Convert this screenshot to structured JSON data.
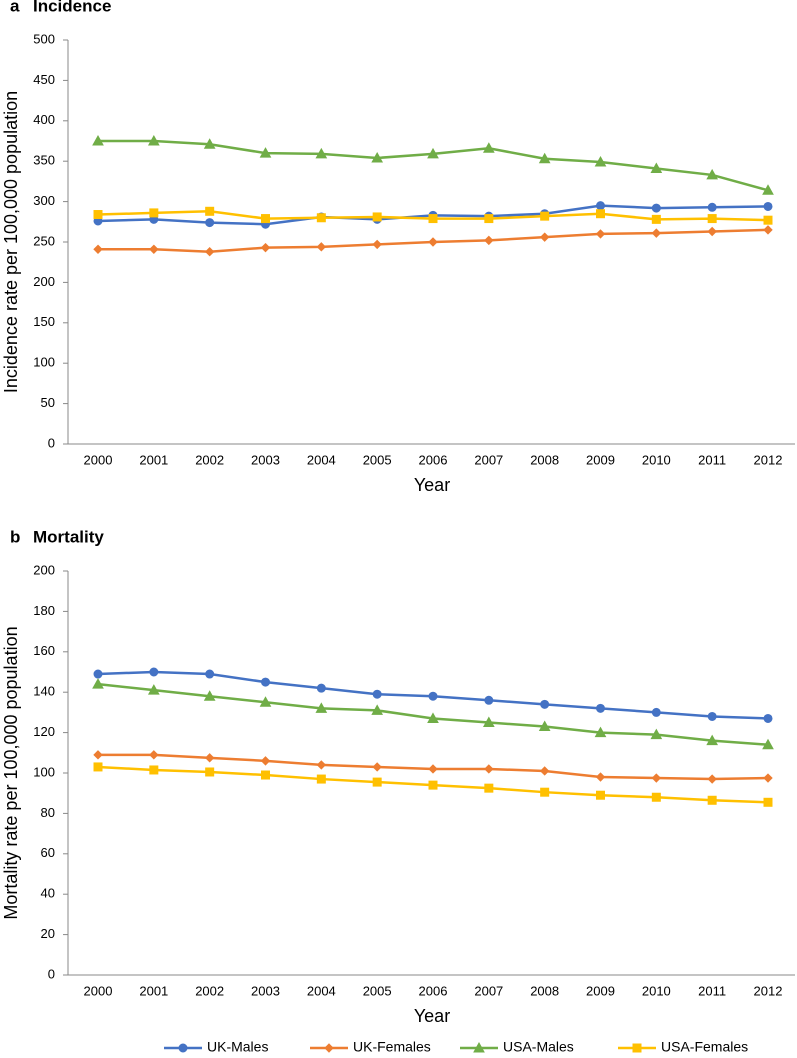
{
  "chart_data": [
    {
      "type": "line",
      "panel": "a",
      "title": "Incidence",
      "x_label": "Year",
      "y_label": "Incidence rate per 100,000 population",
      "categories": [
        "2000",
        "2001",
        "2002",
        "2003",
        "2004",
        "2005",
        "2006",
        "2007",
        "2008",
        "2009",
        "2010",
        "2011",
        "2012"
      ],
      "ylim": [
        0,
        500
      ],
      "yticks": [
        0,
        50,
        100,
        150,
        200,
        250,
        300,
        350,
        400,
        450,
        500
      ],
      "grid": false,
      "series": [
        {
          "name": "UK-Males",
          "color": "#4472c4",
          "marker": "circle",
          "values": [
            276,
            278,
            274,
            272,
            281,
            278,
            283,
            282,
            285,
            295,
            292,
            293,
            294
          ]
        },
        {
          "name": "UK-Females",
          "color": "#ed7d31",
          "marker": "diamond",
          "values": [
            241,
            241,
            238,
            243,
            244,
            247,
            250,
            252,
            256,
            260,
            261,
            263,
            265
          ]
        },
        {
          "name": "USA-Males",
          "color": "#70ad47",
          "marker": "triangle",
          "values": [
            375,
            375,
            371,
            360,
            359,
            354,
            359,
            366,
            353,
            349,
            341,
            333,
            314
          ]
        },
        {
          "name": "USA-Females",
          "color": "#ffc000",
          "marker": "square",
          "values": [
            284,
            286,
            288,
            279,
            280,
            281,
            279,
            279,
            282,
            285,
            278,
            279,
            277
          ]
        }
      ]
    },
    {
      "type": "line",
      "panel": "b",
      "title": "Mortality",
      "x_label": "Year",
      "y_label": "Mortality rate per 100,000 population",
      "categories": [
        "2000",
        "2001",
        "2002",
        "2003",
        "2004",
        "2005",
        "2006",
        "2007",
        "2008",
        "2009",
        "2010",
        "2011",
        "2012"
      ],
      "ylim": [
        0,
        200
      ],
      "yticks": [
        0,
        20,
        40,
        60,
        80,
        100,
        120,
        140,
        160,
        180,
        200
      ],
      "grid": false,
      "series": [
        {
          "name": "UK-Males",
          "color": "#4472c4",
          "marker": "circle",
          "values": [
            149,
            150,
            149,
            145,
            142,
            139,
            138,
            136,
            134,
            132,
            130,
            128,
            127
          ]
        },
        {
          "name": "UK-Females",
          "color": "#ed7d31",
          "marker": "diamond",
          "values": [
            109,
            109,
            107.5,
            106,
            104,
            103,
            102,
            102,
            101,
            98,
            97.5,
            97,
            97.5
          ]
        },
        {
          "name": "USA-Males",
          "color": "#70ad47",
          "marker": "triangle",
          "values": [
            144,
            141,
            138,
            135,
            132,
            131,
            127,
            125,
            123,
            120,
            119,
            116,
            114
          ]
        },
        {
          "name": "USA-Females",
          "color": "#ffc000",
          "marker": "square",
          "values": [
            103,
            101.5,
            100.5,
            99,
            97,
            95.5,
            94,
            92.5,
            90.5,
            89,
            88,
            86.5,
            85.5
          ]
        }
      ]
    }
  ]
}
